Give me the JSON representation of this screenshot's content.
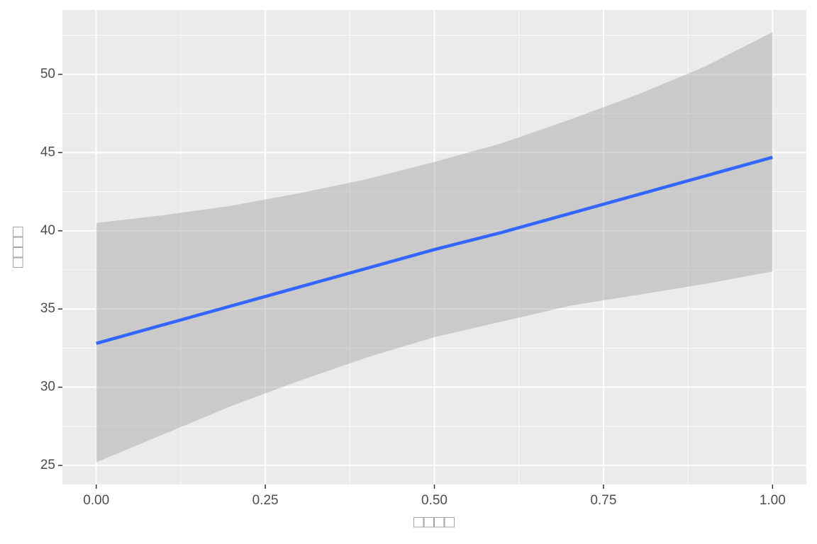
{
  "chart_data": {
    "type": "line",
    "x_label": "□□□□",
    "y_label": "□□□□",
    "x": [
      0,
      0.1,
      0.2,
      0.3,
      0.4,
      0.5,
      0.6,
      0.7,
      0.8,
      0.9,
      1.0
    ],
    "values": [
      32.8,
      34.0,
      35.2,
      36.4,
      37.6,
      38.8,
      39.9,
      41.1,
      42.3,
      43.5,
      44.7
    ],
    "lower": [
      25.2,
      27.0,
      28.8,
      30.4,
      31.9,
      33.2,
      34.2,
      35.2,
      35.9,
      36.6,
      37.4
    ],
    "upper": [
      40.5,
      41.0,
      41.6,
      42.4,
      43.3,
      44.4,
      45.6,
      47.1,
      48.7,
      50.5,
      52.7
    ],
    "color": "#3366ff",
    "ribbon_color": "#999999",
    "xlim": [
      -0.05,
      1.05
    ],
    "ylim": [
      23.78,
      54.12
    ],
    "xticks": [
      {
        "value": 0,
        "label": "0.00"
      },
      {
        "value": 0.25,
        "label": "0.25"
      },
      {
        "value": 0.5,
        "label": "0.50"
      },
      {
        "value": 0.75,
        "label": "0.75"
      },
      {
        "value": 1,
        "label": "1.00"
      }
    ],
    "yticks": [
      25,
      30,
      35,
      40,
      45,
      50
    ],
    "x_minor_grid": [
      0.125,
      0.375,
      0.625,
      0.875
    ],
    "y_minor_grid": [
      27.5,
      32.5,
      37.5,
      42.5,
      47.5,
      52.5
    ],
    "grid": true
  }
}
